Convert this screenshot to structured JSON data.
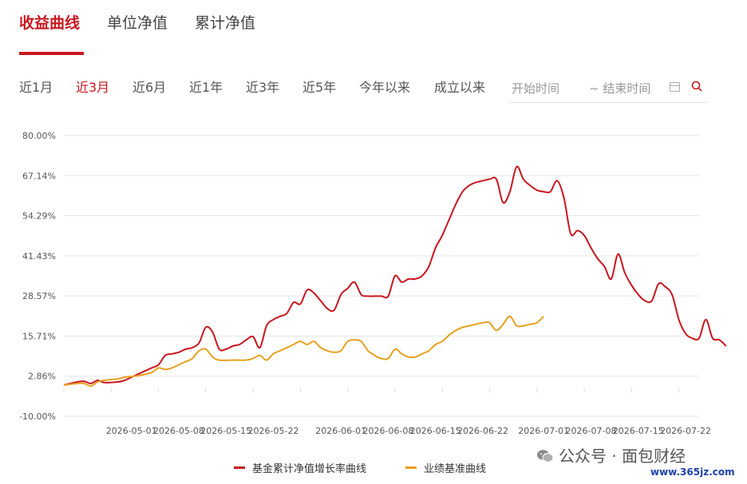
{
  "tabs": [
    {
      "label": "收益曲线",
      "active": true
    },
    {
      "label": "单位净值",
      "active": false
    },
    {
      "label": "累计净值",
      "active": false
    }
  ],
  "ranges": [
    {
      "label": "近1月",
      "active": false
    },
    {
      "label": "近3月",
      "active": true
    },
    {
      "label": "近6月",
      "active": false
    },
    {
      "label": "近1年",
      "active": false
    },
    {
      "label": "近3年",
      "active": false
    },
    {
      "label": "近5年",
      "active": false
    },
    {
      "label": "今年以来",
      "active": false
    },
    {
      "label": "成立以来",
      "active": false
    }
  ],
  "date_filter": {
    "start_placeholder": "开始时间",
    "end_placeholder": "~ 结束时间",
    "icons": [
      "calendar-icon",
      "search-icon"
    ]
  },
  "colors": {
    "accent": "#c8161e",
    "fund": "#c8161e",
    "benchmark": "#e8a020",
    "grid": "#e6e6e6"
  },
  "chart_data": {
    "type": "line",
    "ylim": [
      -10,
      80
    ],
    "yticks": [
      "80.00%",
      "67.14%",
      "54.29%",
      "41.43%",
      "28.57%",
      "15.71%",
      "2.86%",
      "-10.00%"
    ],
    "ytick_values": [
      80,
      67.14,
      54.29,
      41.43,
      28.57,
      15.71,
      2.86,
      -10
    ],
    "x_range": [
      "2026-04-21",
      "2026-07-24"
    ],
    "xticks": [
      "2026-05-01",
      "2026-05-08",
      "2026-05-15",
      "2026-05-22",
      "2026-06-01",
      "2026-06-08",
      "2026-06-15",
      "2026-06-22",
      "2026-07-01",
      "2026-07-08",
      "2026-07-15",
      "2026-07-22"
    ],
    "legend_position": "bottom",
    "grid": true,
    "series": [
      {
        "name": "基金累计净值增长率曲线",
        "color": "#c8161e",
        "points": [
          [
            "2026-04-21",
            0.0
          ],
          [
            "2026-04-23",
            1.0
          ],
          [
            "2026-04-24",
            1.2
          ],
          [
            "2026-04-25",
            0.5
          ],
          [
            "2026-04-26",
            1.5
          ],
          [
            "2026-04-27",
            0.8
          ],
          [
            "2026-04-29",
            1.0
          ],
          [
            "2026-04-30",
            1.5
          ],
          [
            "2026-05-01",
            2.5
          ],
          [
            "2026-05-02",
            3.5
          ],
          [
            "2026-05-04",
            5.5
          ],
          [
            "2026-05-05",
            6.5
          ],
          [
            "2026-05-06",
            9.5
          ],
          [
            "2026-05-07",
            10.0
          ],
          [
            "2026-05-08",
            10.5
          ],
          [
            "2026-05-09",
            11.5
          ],
          [
            "2026-05-10",
            12.0
          ],
          [
            "2026-05-11",
            13.5
          ],
          [
            "2026-05-12",
            18.5
          ],
          [
            "2026-05-13",
            17.0
          ],
          [
            "2026-05-14",
            11.5
          ],
          [
            "2026-05-15",
            11.5
          ],
          [
            "2026-05-16",
            12.5
          ],
          [
            "2026-05-17",
            13.0
          ],
          [
            "2026-05-18",
            14.5
          ],
          [
            "2026-05-19",
            15.5
          ],
          [
            "2026-05-20",
            12.0
          ],
          [
            "2026-05-21",
            19.0
          ],
          [
            "2026-05-22",
            21.0
          ],
          [
            "2026-05-23",
            22.0
          ],
          [
            "2026-05-24",
            23.0
          ],
          [
            "2026-05-25",
            26.5
          ],
          [
            "2026-05-26",
            26.0
          ],
          [
            "2026-05-27",
            30.5
          ],
          [
            "2026-05-28",
            29.5
          ],
          [
            "2026-05-29",
            27.0
          ],
          [
            "2026-05-30",
            24.5
          ],
          [
            "2026-05-31",
            24.0
          ],
          [
            "2026-06-01",
            29.0
          ],
          [
            "2026-06-02",
            31.0
          ],
          [
            "2026-06-03",
            33.0
          ],
          [
            "2026-06-04",
            29.0
          ],
          [
            "2026-06-05",
            28.5
          ],
          [
            "2026-06-06",
            28.5
          ],
          [
            "2026-06-07",
            28.5
          ],
          [
            "2026-06-08",
            28.5
          ],
          [
            "2026-06-09",
            35.0
          ],
          [
            "2026-06-10",
            33.0
          ],
          [
            "2026-06-11",
            34.0
          ],
          [
            "2026-06-12",
            34.0
          ],
          [
            "2026-06-13",
            35.0
          ],
          [
            "2026-06-14",
            38.0
          ],
          [
            "2026-06-15",
            44.0
          ],
          [
            "2026-06-16",
            48.0
          ],
          [
            "2026-06-17",
            53.0
          ],
          [
            "2026-06-18",
            58.0
          ],
          [
            "2026-06-19",
            62.0
          ],
          [
            "2026-06-20",
            64.0
          ],
          [
            "2026-06-21",
            65.0
          ],
          [
            "2026-06-22",
            65.5
          ],
          [
            "2026-06-23",
            66.0
          ],
          [
            "2026-06-24",
            66.0
          ],
          [
            "2026-06-25",
            58.5
          ],
          [
            "2026-06-26",
            62.0
          ],
          [
            "2026-06-27",
            70.0
          ],
          [
            "2026-06-28",
            66.0
          ],
          [
            "2026-06-29",
            64.0
          ],
          [
            "2026-06-30",
            62.5
          ],
          [
            "2026-07-01",
            62.0
          ],
          [
            "2026-07-02",
            62.0
          ],
          [
            "2026-07-03",
            65.5
          ],
          [
            "2026-07-04",
            60.0
          ],
          [
            "2026-07-05",
            48.5
          ],
          [
            "2026-07-06",
            49.5
          ],
          [
            "2026-07-07",
            48.0
          ],
          [
            "2026-07-08",
            44.0
          ],
          [
            "2026-07-09",
            40.5
          ],
          [
            "2026-07-10",
            38.0
          ],
          [
            "2026-07-11",
            34.0
          ],
          [
            "2026-07-12",
            42.0
          ],
          [
            "2026-07-13",
            36.0
          ],
          [
            "2026-07-14",
            32.0
          ],
          [
            "2026-07-15",
            29.0
          ],
          [
            "2026-07-16",
            27.0
          ],
          [
            "2026-07-17",
            27.0
          ],
          [
            "2026-07-18",
            32.5
          ],
          [
            "2026-07-19",
            31.5
          ],
          [
            "2026-07-20",
            29.0
          ],
          [
            "2026-07-21",
            21.0
          ],
          [
            "2026-07-22",
            16.5
          ],
          [
            "2026-07-23",
            15.0
          ],
          [
            "2026-07-24",
            15.0
          ],
          [
            "2026-07-25",
            21.0
          ],
          [
            "2026-07-26",
            15.0
          ],
          [
            "2026-07-27",
            14.5
          ],
          [
            "2026-07-28",
            12.5
          ]
        ]
      },
      {
        "name": "业绩基准曲线",
        "color": "#e8a020",
        "points": [
          [
            "2026-04-21",
            0.0
          ],
          [
            "2026-04-23",
            0.5
          ],
          [
            "2026-04-24",
            0.5
          ],
          [
            "2026-04-25",
            -0.3
          ],
          [
            "2026-04-26",
            1.0
          ],
          [
            "2026-04-27",
            1.5
          ],
          [
            "2026-04-29",
            2.0
          ],
          [
            "2026-04-30",
            2.5
          ],
          [
            "2026-05-02",
            3.0
          ],
          [
            "2026-05-04",
            4.0
          ],
          [
            "2026-05-05",
            5.5
          ],
          [
            "2026-05-06",
            5.0
          ],
          [
            "2026-05-07",
            5.5
          ],
          [
            "2026-05-08",
            6.5
          ],
          [
            "2026-05-09",
            7.5
          ],
          [
            "2026-05-10",
            8.5
          ],
          [
            "2026-05-11",
            11.0
          ],
          [
            "2026-05-12",
            11.5
          ],
          [
            "2026-05-13",
            9.0
          ],
          [
            "2026-05-14",
            8.0
          ],
          [
            "2026-05-16",
            8.0
          ],
          [
            "2026-05-18",
            8.0
          ],
          [
            "2026-05-19",
            8.5
          ],
          [
            "2026-05-20",
            9.5
          ],
          [
            "2026-05-21",
            8.0
          ],
          [
            "2026-05-22",
            10.0
          ],
          [
            "2026-05-23",
            11.0
          ],
          [
            "2026-05-24",
            12.0
          ],
          [
            "2026-05-25",
            13.0
          ],
          [
            "2026-05-26",
            14.0
          ],
          [
            "2026-05-27",
            13.0
          ],
          [
            "2026-05-28",
            14.0
          ],
          [
            "2026-05-29",
            12.0
          ],
          [
            "2026-05-30",
            11.0
          ],
          [
            "2026-05-31",
            10.5
          ],
          [
            "2026-06-01",
            11.0
          ],
          [
            "2026-06-02",
            14.0
          ],
          [
            "2026-06-03",
            14.5
          ],
          [
            "2026-06-04",
            14.0
          ],
          [
            "2026-06-05",
            11.0
          ],
          [
            "2026-06-06",
            9.5
          ],
          [
            "2026-06-07",
            8.5
          ],
          [
            "2026-06-08",
            8.5
          ],
          [
            "2026-06-09",
            11.5
          ],
          [
            "2026-06-10",
            10.0
          ],
          [
            "2026-06-11",
            9.0
          ],
          [
            "2026-06-12",
            9.0
          ],
          [
            "2026-06-13",
            10.0
          ],
          [
            "2026-06-14",
            11.0
          ],
          [
            "2026-06-15",
            13.0
          ],
          [
            "2026-06-16",
            14.0
          ],
          [
            "2026-06-17",
            16.0
          ],
          [
            "2026-06-18",
            17.5
          ],
          [
            "2026-06-19",
            18.5
          ],
          [
            "2026-06-20",
            19.0
          ],
          [
            "2026-06-21",
            19.5
          ],
          [
            "2026-06-22",
            20.0
          ],
          [
            "2026-06-23",
            20.0
          ],
          [
            "2026-06-24",
            17.5
          ],
          [
            "2026-06-25",
            19.5
          ],
          [
            "2026-06-26",
            22.0
          ],
          [
            "2026-06-27",
            19.0
          ],
          [
            "2026-06-28",
            19.0
          ],
          [
            "2026-06-29",
            19.5
          ],
          [
            "2026-06-30",
            20.0
          ],
          [
            "2026-07-01",
            22.0
          ]
        ]
      }
    ]
  },
  "watermark": {
    "text": "公众号 · 面包财经",
    "url": "www.365jz.com"
  }
}
